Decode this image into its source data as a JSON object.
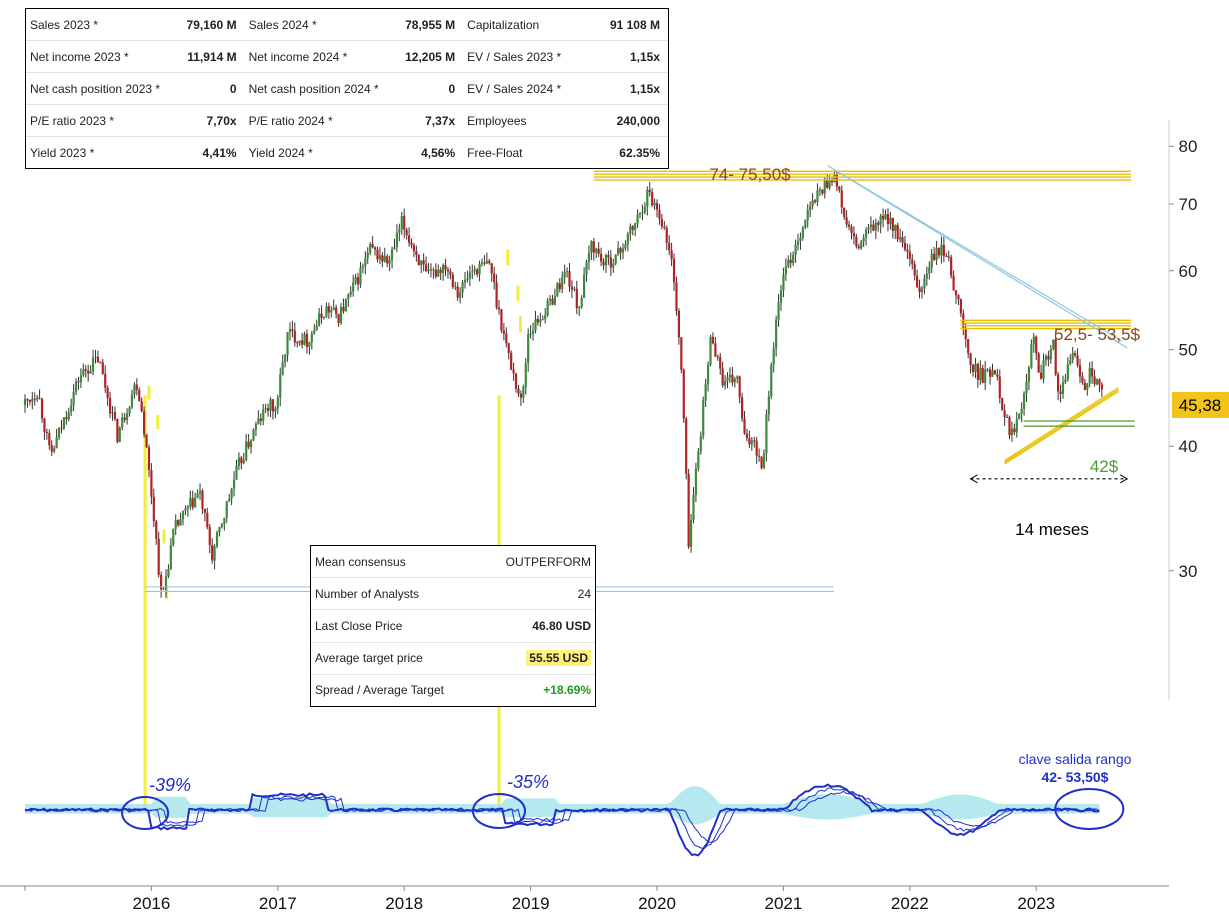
{
  "fundamentals": {
    "columns": [
      [
        {
          "label": "Sales 2023 *",
          "value": "79,160 M"
        },
        {
          "label": "Net income 2023 *",
          "value": "11,914 M"
        },
        {
          "label": "Net cash position 2023 *",
          "value": "0"
        },
        {
          "label": "P/E ratio 2023 *",
          "value": "7,70x"
        },
        {
          "label": "Yield 2023 *",
          "value": "4,41%"
        }
      ],
      [
        {
          "label": "Sales 2024 *",
          "value": "78,955 M"
        },
        {
          "label": "Net income 2024 *",
          "value": "12,205 M"
        },
        {
          "label": "Net cash position 2024 *",
          "value": "0"
        },
        {
          "label": "P/E ratio 2024 *",
          "value": "7,37x"
        },
        {
          "label": "Yield 2024 *",
          "value": "4,56%"
        }
      ],
      [
        {
          "label": "Capitalization",
          "value": "91 108 M"
        },
        {
          "label": "EV / Sales 2023 *",
          "value": "1,15x"
        },
        {
          "label": "EV / Sales 2024 *",
          "value": "1,15x"
        },
        {
          "label": "Employees",
          "value": "240,000"
        },
        {
          "label": "Free-Float",
          "value": "62.35%"
        }
      ]
    ]
  },
  "consensus": {
    "mean_label": "Mean consensus",
    "mean_value": "OUTPERFORM",
    "analysts_label": "Number of Analysts",
    "analysts_value": "24",
    "last_label": "Last Close Price",
    "last_value": "46.80 USD",
    "target_label": "Average target price",
    "target_value": "55.55 USD",
    "spread_label": "Spread / Average Target",
    "spread_value": "+18.69%"
  },
  "chart_data": {
    "type": "candlestick",
    "y_scale": "log",
    "ylim": [
      22,
      85
    ],
    "yticks": [
      30,
      40,
      50,
      60,
      70,
      80
    ],
    "x_labels": [
      "2016",
      "2017",
      "2018",
      "2019",
      "2020",
      "2021",
      "2022",
      "2023"
    ],
    "x_range": [
      2015.0,
      2023.9
    ],
    "last_price_label": "45,38",
    "last_price": 45.38,
    "price_anchors": [
      [
        2015.0,
        44
      ],
      [
        2015.12,
        45.5
      ],
      [
        2015.22,
        39
      ],
      [
        2015.45,
        47
      ],
      [
        2015.6,
        49
      ],
      [
        2015.75,
        41
      ],
      [
        2015.9,
        46.5
      ],
      [
        2015.95,
        43
      ],
      [
        2016.05,
        33
      ],
      [
        2016.1,
        28
      ],
      [
        2016.2,
        33
      ],
      [
        2016.4,
        36
      ],
      [
        2016.5,
        31
      ],
      [
        2016.7,
        38
      ],
      [
        2016.85,
        42
      ],
      [
        2016.95,
        44
      ],
      [
        2017.0,
        43.5
      ],
      [
        2017.1,
        52
      ],
      [
        2017.25,
        51
      ],
      [
        2017.4,
        55
      ],
      [
        2017.5,
        54
      ],
      [
        2017.6,
        57
      ],
      [
        2017.75,
        63
      ],
      [
        2017.9,
        61
      ],
      [
        2018.0,
        67
      ],
      [
        2018.1,
        63
      ],
      [
        2018.2,
        59
      ],
      [
        2018.35,
        61
      ],
      [
        2018.45,
        57
      ],
      [
        2018.55,
        60
      ],
      [
        2018.7,
        61
      ],
      [
        2018.75,
        56
      ],
      [
        2018.85,
        49
      ],
      [
        2018.95,
        44
      ],
      [
        2019.0,
        52
      ],
      [
        2019.15,
        55
      ],
      [
        2019.3,
        60
      ],
      [
        2019.4,
        55
      ],
      [
        2019.5,
        64
      ],
      [
        2019.6,
        61
      ],
      [
        2019.7,
        62
      ],
      [
        2019.85,
        67
      ],
      [
        2019.95,
        72
      ],
      [
        2020.05,
        68
      ],
      [
        2020.15,
        60
      ],
      [
        2020.22,
        46
      ],
      [
        2020.27,
        32
      ],
      [
        2020.33,
        38
      ],
      [
        2020.45,
        52
      ],
      [
        2020.55,
        46
      ],
      [
        2020.65,
        47
      ],
      [
        2020.72,
        40
      ],
      [
        2020.78,
        41
      ],
      [
        2020.85,
        38
      ],
      [
        2020.92,
        48
      ],
      [
        2021.0,
        58
      ],
      [
        2021.1,
        63
      ],
      [
        2021.2,
        68
      ],
      [
        2021.3,
        72
      ],
      [
        2021.42,
        75
      ],
      [
        2021.5,
        68
      ],
      [
        2021.6,
        63
      ],
      [
        2021.7,
        66
      ],
      [
        2021.85,
        68
      ],
      [
        2022.0,
        62
      ],
      [
        2022.1,
        57
      ],
      [
        2022.2,
        62
      ],
      [
        2022.3,
        63
      ],
      [
        2022.4,
        56
      ],
      [
        2022.5,
        48
      ],
      [
        2022.6,
        47
      ],
      [
        2022.7,
        48
      ],
      [
        2022.75,
        44
      ],
      [
        2022.82,
        41
      ],
      [
        2022.9,
        44
      ],
      [
        2023.0,
        52
      ],
      [
        2023.05,
        47
      ],
      [
        2023.15,
        51
      ],
      [
        2023.2,
        44
      ],
      [
        2023.3,
        50
      ],
      [
        2023.4,
        46
      ],
      [
        2023.45,
        48
      ],
      [
        2023.5,
        46
      ],
      [
        2023.52,
        45.38
      ]
    ],
    "horizontal_bands": [
      {
        "label": "74- 75,50$",
        "from": 74,
        "to": 75.5,
        "x_start": 2019.5,
        "x_end": 2023.75
      },
      {
        "label": "52,5- 53,5$",
        "from": 52.5,
        "to": 53.5,
        "x_start": 2022.4,
        "x_end": 2023.75
      }
    ],
    "support": {
      "label": "42$",
      "value": 42
    },
    "range_label": "14 meses",
    "drop_markers": [
      {
        "label": "-39%",
        "x": 2015.95
      },
      {
        "label": "-35%",
        "x": 2018.75
      }
    ],
    "oscillator_note": {
      "line1": "clave salida rango",
      "line2": "42- 53,50$"
    },
    "colors": {
      "up": "#3d8a3d",
      "down": "#b22222",
      "wick": "#333333",
      "band": "#e8c000",
      "band_text": "#8b4513",
      "support": "#4a9a30",
      "trendline": "#8ec7de",
      "osc": "#1f2fc8",
      "osc_fill": "#9be3ea",
      "axis": "#888888"
    }
  }
}
